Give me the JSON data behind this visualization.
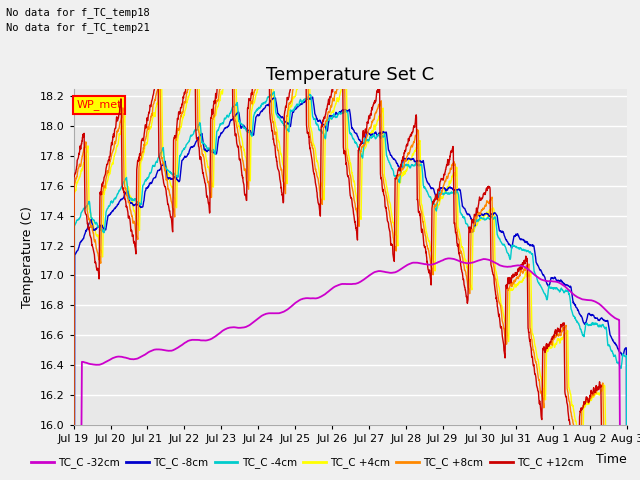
{
  "title": "Temperature Set C",
  "ylabel": "Temperature (C)",
  "xlabel": "Time",
  "ylim": [
    16.0,
    18.25
  ],
  "yticks": [
    16.0,
    16.2,
    16.4,
    16.6,
    16.8,
    17.0,
    17.2,
    17.4,
    17.6,
    17.8,
    18.0,
    18.2
  ],
  "annotations": [
    "No data for f_TC_temp18",
    "No data for f_TC_temp21"
  ],
  "wp_met_label": "WP_met",
  "legend_entries": [
    {
      "label": "TC_C -32cm",
      "color": "#cc00cc"
    },
    {
      "label": "TC_C -8cm",
      "color": "#0000cc"
    },
    {
      "label": "TC_C -4cm",
      "color": "#00cccc"
    },
    {
      "label": "TC_C +4cm",
      "color": "#ffff00"
    },
    {
      "label": "TC_C +8cm",
      "color": "#ff8800"
    },
    {
      "label": "TC_C +12cm",
      "color": "#cc0000"
    }
  ],
  "xtick_labels": [
    "Jul 19",
    "Jul 20",
    "Jul 21",
    "Jul 22",
    "Jul 23",
    "Jul 24",
    "Jul 25",
    "Jul 26",
    "Jul 27",
    "Jul 28",
    "Jul 29",
    "Jul 30",
    "Jul 31",
    "Aug 1",
    "Aug 2",
    "Aug 3"
  ],
  "background_color": "#f0f0f0",
  "plot_bg_color": "#e8e8e8",
  "grid_color": "#ffffff",
  "title_fontsize": 13,
  "axis_fontsize": 9,
  "tick_fontsize": 8
}
